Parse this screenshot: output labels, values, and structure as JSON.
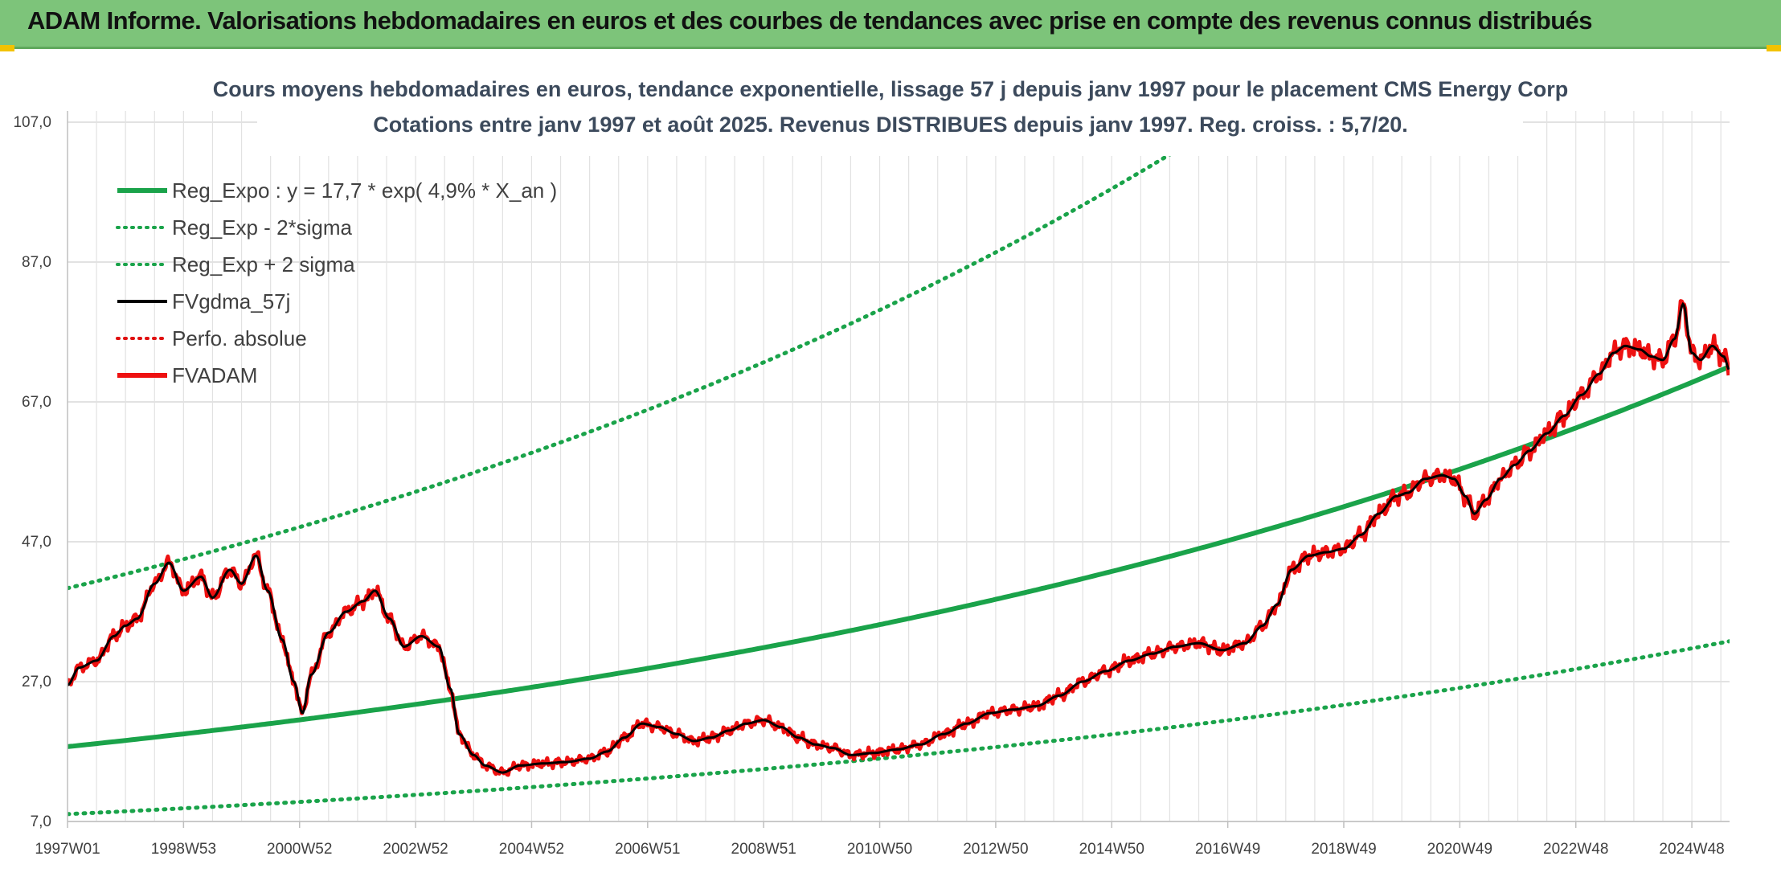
{
  "header": {
    "title": "ADAM Informe. Valorisations hebdomadaires en euros et des courbes de tendances avec prise en compte des revenus connus distribués"
  },
  "chart_data": {
    "type": "line",
    "title": "Cours moyens hebdomadaires en euros, tendance exponentielle, lissage 57 j depuis janv 1997 pour le placement CMS Energy Corp",
    "subtitle": "Cotations entre janv 1997 et août 2025. Revenus DISTRIBUES depuis janv 1997. Reg. croiss. : 5,7/20.",
    "xlabel": "",
    "ylabel": "",
    "x_range": [
      1997.0,
      2025.65
    ],
    "ylim": [
      7,
      107
    ],
    "y_ticks": [
      "7,0",
      "27,0",
      "47,0",
      "67,0",
      "87,0",
      "107,0"
    ],
    "x_ticks": [
      {
        "label": "1997W01",
        "x": 1997.0
      },
      {
        "label": "1998W53",
        "x": 1999.0
      },
      {
        "label": "2000W52",
        "x": 2001.0
      },
      {
        "label": "2002W52",
        "x": 2003.0
      },
      {
        "label": "2004W52",
        "x": 2005.0
      },
      {
        "label": "2006W51",
        "x": 2007.0
      },
      {
        "label": "2008W51",
        "x": 2009.0
      },
      {
        "label": "2010W50",
        "x": 2011.0
      },
      {
        "label": "2012W50",
        "x": 2013.0
      },
      {
        "label": "2014W50",
        "x": 2015.0
      },
      {
        "label": "2016W49",
        "x": 2017.0
      },
      {
        "label": "2018W49",
        "x": 2019.0
      },
      {
        "label": "2020W49",
        "x": 2021.0
      },
      {
        "label": "2022W48",
        "x": 2023.0
      },
      {
        "label": "2024W48",
        "x": 2025.0
      }
    ],
    "grid": true,
    "legend_position": "top-left",
    "regression": {
      "a": 17.7,
      "rate": 0.049,
      "lower_factor": 0.455,
      "upper_factor": 2.28
    },
    "series": [
      {
        "name": "Reg_Expo : y = 17,7 * exp( 4,9% *  X_an )",
        "color": "#1aa34a",
        "style": "solid-thick",
        "kind": "reg"
      },
      {
        "name": "Reg_Exp - 2*sigma",
        "color": "#1aa34a",
        "style": "dotted",
        "kind": "reg_lower"
      },
      {
        "name": "Reg_Exp + 2 sigma",
        "color": "#1aa34a",
        "style": "dotted",
        "kind": "reg_upper"
      },
      {
        "name": "FVgdma_57j",
        "color": "#000000",
        "style": "solid",
        "kind": "smooth"
      },
      {
        "name": "Perfo. absolue",
        "color": "#e01010",
        "style": "dotted",
        "kind": "perfo"
      },
      {
        "name": "FVADAM",
        "color": "#ee1111",
        "style": "solid-thick",
        "kind": "price"
      }
    ],
    "price_points": [
      [
        1997.0,
        26.5
      ],
      [
        1997.2,
        29.0
      ],
      [
        1997.5,
        30.0
      ],
      [
        1997.8,
        33.5
      ],
      [
        1998.0,
        35.0
      ],
      [
        1998.2,
        36.0
      ],
      [
        1998.5,
        41.0
      ],
      [
        1998.75,
        44.0
      ],
      [
        1999.0,
        40.0
      ],
      [
        1999.3,
        42.0
      ],
      [
        1999.5,
        39.0
      ],
      [
        1999.8,
        43.0
      ],
      [
        2000.0,
        41.0
      ],
      [
        2000.25,
        45.0
      ],
      [
        2000.45,
        40.0
      ],
      [
        2000.7,
        33.0
      ],
      [
        2000.9,
        27.0
      ],
      [
        2001.05,
        22.5
      ],
      [
        2001.2,
        28.0
      ],
      [
        2001.5,
        34.0
      ],
      [
        2001.8,
        37.0
      ],
      [
        2002.1,
        38.5
      ],
      [
        2002.3,
        40.0
      ],
      [
        2002.55,
        36.0
      ],
      [
        2002.8,
        32.0
      ],
      [
        2003.1,
        33.5
      ],
      [
        2003.4,
        32.0
      ],
      [
        2003.6,
        26.0
      ],
      [
        2003.75,
        19.5
      ],
      [
        2004.0,
        16.5
      ],
      [
        2004.2,
        15.0
      ],
      [
        2004.5,
        14.0
      ],
      [
        2004.8,
        15.0
      ],
      [
        2005.2,
        15.3
      ],
      [
        2005.6,
        15.5
      ],
      [
        2006.0,
        16.0
      ],
      [
        2006.3,
        17.0
      ],
      [
        2006.6,
        19.0
      ],
      [
        2006.9,
        21.0
      ],
      [
        2007.2,
        20.5
      ],
      [
        2007.5,
        19.5
      ],
      [
        2007.8,
        18.5
      ],
      [
        2008.1,
        19.0
      ],
      [
        2008.4,
        20.0
      ],
      [
        2008.7,
        21.0
      ],
      [
        2009.0,
        21.5
      ],
      [
        2009.3,
        20.5
      ],
      [
        2009.6,
        19.0
      ],
      [
        2009.9,
        18.0
      ],
      [
        2010.2,
        17.5
      ],
      [
        2010.5,
        16.5
      ],
      [
        2010.9,
        16.8
      ],
      [
        2011.3,
        17.3
      ],
      [
        2011.7,
        18.0
      ],
      [
        2012.1,
        19.5
      ],
      [
        2012.5,
        21.0
      ],
      [
        2012.9,
        22.5
      ],
      [
        2013.3,
        23.0
      ],
      [
        2013.7,
        23.5
      ],
      [
        2014.1,
        25.0
      ],
      [
        2014.5,
        27.0
      ],
      [
        2014.9,
        28.5
      ],
      [
        2015.3,
        30.0
      ],
      [
        2015.7,
        31.0
      ],
      [
        2016.1,
        32.0
      ],
      [
        2016.5,
        32.5
      ],
      [
        2016.9,
        31.5
      ],
      [
        2017.3,
        32.5
      ],
      [
        2017.6,
        35.0
      ],
      [
        2017.85,
        38.0
      ],
      [
        2018.1,
        43.0
      ],
      [
        2018.4,
        45.0
      ],
      [
        2018.7,
        45.5
      ],
      [
        2019.0,
        46.0
      ],
      [
        2019.3,
        48.0
      ],
      [
        2019.6,
        51.0
      ],
      [
        2019.9,
        53.5
      ],
      [
        2020.1,
        54.0
      ],
      [
        2020.4,
        56.0
      ],
      [
        2020.7,
        56.5
      ],
      [
        2020.9,
        56.0
      ],
      [
        2021.1,
        53.5
      ],
      [
        2021.25,
        51.0
      ],
      [
        2021.45,
        53.0
      ],
      [
        2021.7,
        56.0
      ],
      [
        2021.95,
        58.0
      ],
      [
        2022.2,
        60.0
      ],
      [
        2022.5,
        62.5
      ],
      [
        2022.8,
        65.0
      ],
      [
        2023.1,
        68.0
      ],
      [
        2023.4,
        71.0
      ],
      [
        2023.65,
        74.0
      ],
      [
        2023.85,
        75.0
      ],
      [
        2024.1,
        74.5
      ],
      [
        2024.3,
        73.5
      ],
      [
        2024.5,
        73.0
      ],
      [
        2024.7,
        76.0
      ],
      [
        2024.85,
        81.0
      ],
      [
        2025.0,
        74.0
      ],
      [
        2025.15,
        73.0
      ],
      [
        2025.35,
        75.0
      ],
      [
        2025.55,
        73.5
      ],
      [
        2025.65,
        71.5
      ]
    ],
    "price_points_note": ""
  }
}
